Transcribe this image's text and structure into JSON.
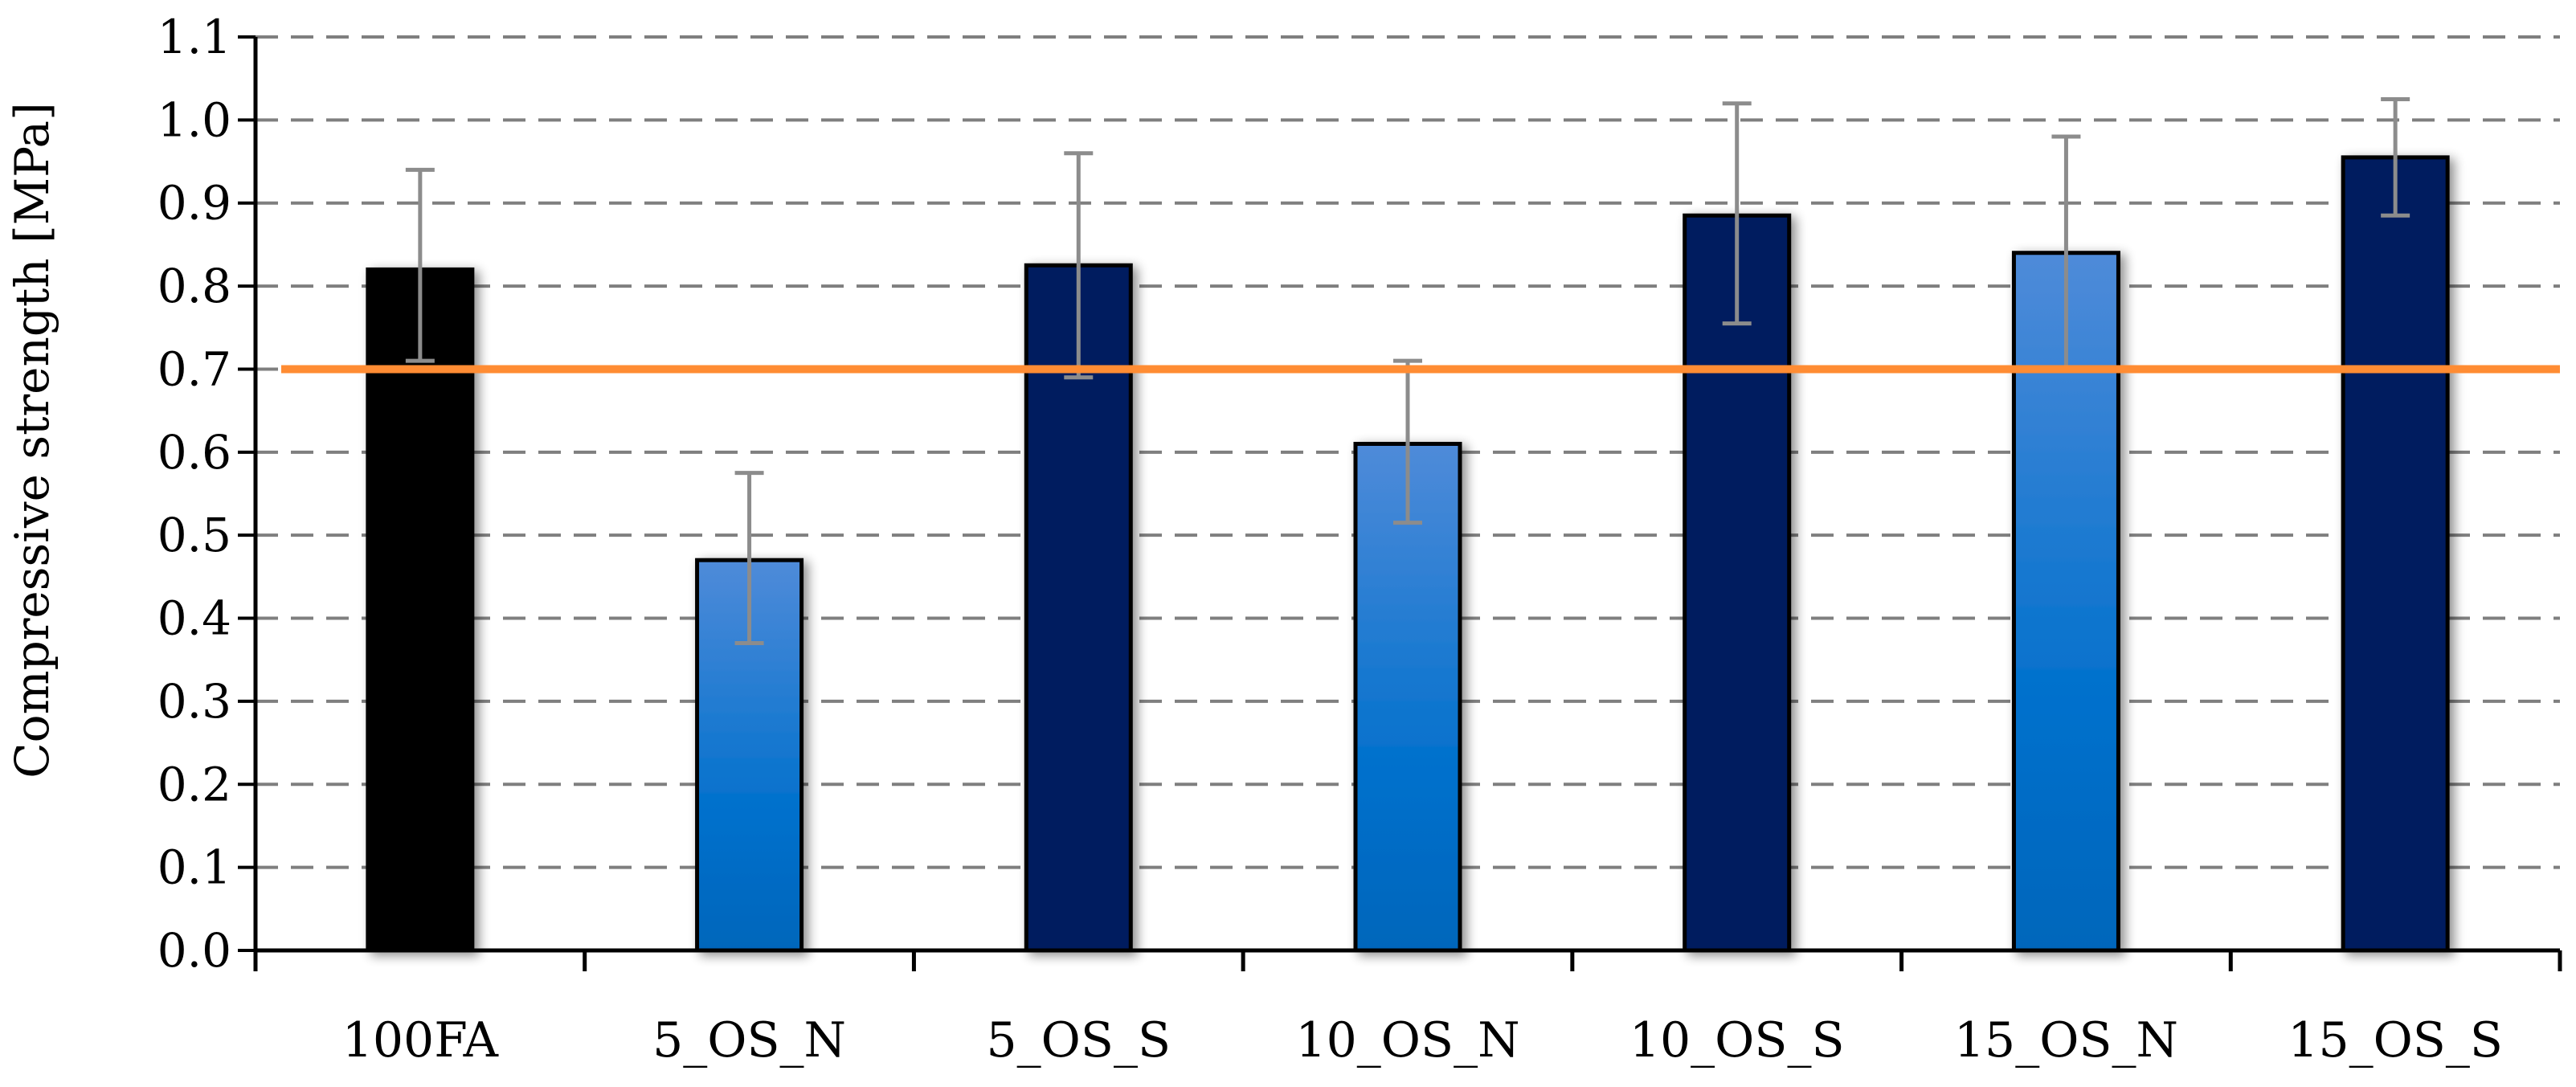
{
  "chart_data": {
    "type": "bar",
    "ylabel": "Compressive strength [MPa]",
    "xlabel": "",
    "ylim": [
      0,
      1.1
    ],
    "yticks": [
      "0.0",
      "0.1",
      "0.2",
      "0.3",
      "0.4",
      "0.5",
      "0.6",
      "0.7",
      "0.8",
      "0.9",
      "1.0",
      "1.1"
    ],
    "grid": "horizontal dashed",
    "categories": [
      "100FA",
      "5_OS_N",
      "5_OS_S",
      "10_OS_N",
      "10_OS_S",
      "15_OS_N",
      "15_OS_S"
    ],
    "values": [
      0.82,
      0.47,
      0.825,
      0.61,
      0.885,
      0.84,
      0.955
    ],
    "error": [
      {
        "low": 0.71,
        "high": 0.94
      },
      {
        "low": 0.37,
        "high": 0.575
      },
      {
        "low": 0.69,
        "high": 0.96
      },
      {
        "low": 0.515,
        "high": 0.71
      },
      {
        "low": 0.755,
        "high": 1.02
      },
      {
        "low": 0.7,
        "high": 0.98
      },
      {
        "low": 0.885,
        "high": 1.025
      }
    ],
    "bar_styles": [
      "black",
      "light-blue-gradient",
      "navy",
      "light-blue-gradient",
      "navy",
      "light-blue-gradient",
      "navy"
    ],
    "reference_line": {
      "y": 0.7,
      "color": "#FF8C33"
    },
    "colors": {
      "black": "#000000",
      "navy": "#001A5E",
      "light_top": "#4F8BD9",
      "light_bottom": "#0070CC",
      "error_bar": "#8C8C8C",
      "grid": "#7F7F7F",
      "axis": "#000000"
    }
  }
}
